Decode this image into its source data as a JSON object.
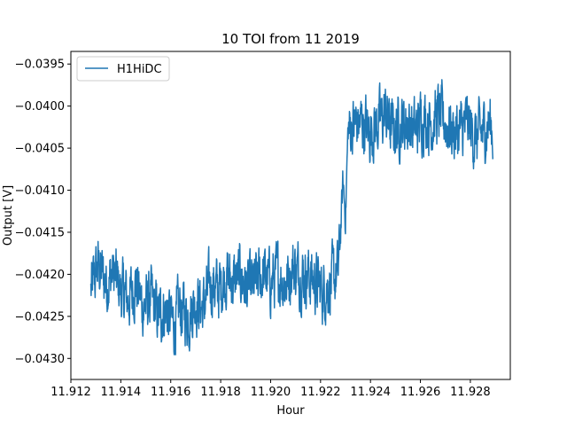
{
  "chart_data": {
    "type": "line",
    "title": "10 TOI from 11 2019",
    "xlabel": "Hour",
    "ylabel": "Output [V]",
    "xlim": [
      11.912,
      11.9296
    ],
    "ylim": [
      -0.04325,
      -0.03935
    ],
    "xticks": [
      11.912,
      11.914,
      11.916,
      11.918,
      11.92,
      11.922,
      11.924,
      11.926,
      11.928
    ],
    "xtick_labels": [
      "11.912",
      "11.914",
      "11.916",
      "11.918",
      "11.920",
      "11.922",
      "11.924",
      "11.926",
      "11.928"
    ],
    "yticks": [
      -0.043,
      -0.0425,
      -0.042,
      -0.0415,
      -0.041,
      -0.0405,
      -0.04,
      -0.0395
    ],
    "ytick_labels": [
      "−0.0430",
      "−0.0425",
      "−0.0420",
      "−0.0415",
      "−0.0410",
      "−0.0405",
      "−0.0400",
      "−0.0395"
    ],
    "grid": false,
    "legend": {
      "position": "top-left",
      "entries": [
        "H1HiDC"
      ]
    },
    "series": [
      {
        "name": "H1HiDC",
        "color": "#1f77b4",
        "x": [
          11.9128,
          11.9131,
          11.9134,
          11.9137,
          11.914,
          11.9143,
          11.9146,
          11.9149,
          11.9152,
          11.9155,
          11.9158,
          11.9161,
          11.9164,
          11.9167,
          11.917,
          11.9173,
          11.9176,
          11.9179,
          11.9182,
          11.9185,
          11.9188,
          11.9191,
          11.9194,
          11.9197,
          11.92,
          11.9203,
          11.9206,
          11.9209,
          11.9212,
          11.9215,
          11.9218,
          11.9221,
          11.9224,
          11.9227,
          11.9228,
          11.9229,
          11.923,
          11.9231,
          11.9234,
          11.9237,
          11.924,
          11.9243,
          11.9246,
          11.9249,
          11.9252,
          11.9255,
          11.9258,
          11.9261,
          11.9264,
          11.9267,
          11.927,
          11.9273,
          11.9276,
          11.9279,
          11.9282,
          11.9285,
          11.9288,
          11.9289
        ],
        "values": [
          -0.0422,
          -0.0419,
          -0.0421,
          -0.042,
          -0.0422,
          -0.0423,
          -0.0421,
          -0.0424,
          -0.0423,
          -0.0425,
          -0.0424,
          -0.0426,
          -0.0424,
          -0.0425,
          -0.0423,
          -0.0424,
          -0.0421,
          -0.0422,
          -0.042,
          -0.0421,
          -0.042,
          -0.0422,
          -0.0421,
          -0.042,
          -0.0421,
          -0.042,
          -0.0421,
          -0.0419,
          -0.042,
          -0.042,
          -0.0421,
          -0.0422,
          -0.0421,
          -0.042,
          -0.0415,
          -0.0409,
          -0.0413,
          -0.0403,
          -0.0402,
          -0.0402,
          -0.0403,
          -0.0402,
          -0.0401,
          -0.0403,
          -0.0402,
          -0.0402,
          -0.0403,
          -0.0401,
          -0.0402,
          -0.0401,
          -0.0402,
          -0.0403,
          -0.0403,
          -0.0402,
          -0.0404,
          -0.0403,
          -0.0402,
          -0.0403
        ],
        "noise_amplitude": 0.00032
      }
    ]
  }
}
